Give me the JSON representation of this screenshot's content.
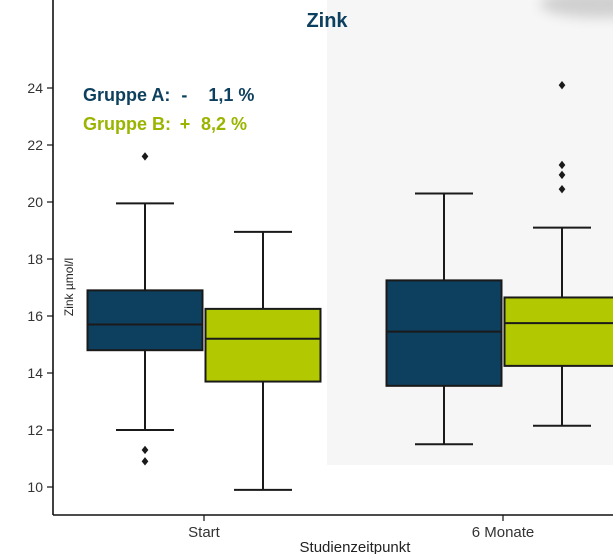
{
  "chart_data": {
    "type": "box",
    "title": "Zink",
    "xlabel": "Studienzeitpunkt",
    "ylabel": "Zink µmol/l",
    "ylim": [
      9.2,
      26.2
    ],
    "yticks": [
      10,
      12,
      14,
      16,
      18,
      20,
      22,
      24
    ],
    "categories": [
      "Start",
      "6 Monate"
    ],
    "series": [
      {
        "name": "Gruppe A",
        "color": "#0d3f5e",
        "boxes": [
          {
            "category": "Start",
            "whisker_low": 12.0,
            "q1": 14.8,
            "median": 15.7,
            "q3": 16.9,
            "whisker_high": 19.95,
            "outliers": [
              11.3,
              10.9,
              21.6
            ]
          },
          {
            "category": "6 Monate",
            "whisker_low": 11.5,
            "q1": 13.55,
            "median": 15.45,
            "q3": 17.25,
            "whisker_high": 20.3,
            "outliers": []
          }
        ]
      },
      {
        "name": "Gruppe B",
        "color": "#b2c800",
        "boxes": [
          {
            "category": "Start",
            "whisker_low": 9.9,
            "q1": 13.7,
            "median": 15.2,
            "q3": 16.25,
            "whisker_high": 18.95,
            "outliers": []
          },
          {
            "category": "6 Monate",
            "whisker_low": 12.15,
            "q1": 14.25,
            "median": 15.75,
            "q3": 16.65,
            "whisker_high": 19.1,
            "outliers": [
              20.45,
              20.95,
              21.3,
              24.1
            ]
          }
        ]
      }
    ],
    "annotations": [
      {
        "group": "Gruppe A:",
        "sign": "-",
        "value": "1,1 %",
        "color": "#0d3f5e"
      },
      {
        "group": "Gruppe B:",
        "sign": "+",
        "value": "8,2 %",
        "color": "#9bb400"
      }
    ],
    "grid": false,
    "legend": "none"
  }
}
